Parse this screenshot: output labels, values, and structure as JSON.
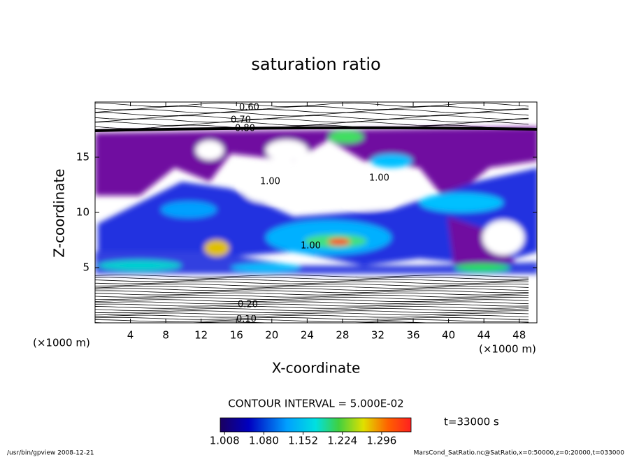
{
  "chart_data": {
    "type": "contour",
    "title": "saturation ratio",
    "x_label": "X-coordinate",
    "y_label": "Z-coordinate",
    "unit_label": "(×1000 m)",
    "xlim": [
      0,
      50
    ],
    "ylim": [
      0,
      20
    ],
    "xticks": [
      4,
      8,
      12,
      16,
      20,
      24,
      28,
      32,
      36,
      40,
      44,
      48
    ],
    "yticks": [
      5,
      10,
      15
    ],
    "contour_interval": "CONTOUR INTERVAL = 5.000E-02",
    "colorbar_lim": [
      1.0,
      1.35
    ],
    "colorbar_ticks": [
      1.008,
      {
        "value": 1.08,
        "label": "1.080"
      },
      1.152,
      1.224,
      1.296
    ],
    "time_label": "t=33000 s",
    "contour_labels": [
      "0.60",
      "0.70",
      "0.80",
      "1.00",
      "1.00",
      "1.00",
      "0.20",
      "0.10"
    ],
    "footer_left": "/usr/bin/gpview  2008-12-21",
    "footer_right": "MarsCond_SatRatio.nc@SatRatio,x=0:50000,z=0:20000,t=033000"
  }
}
